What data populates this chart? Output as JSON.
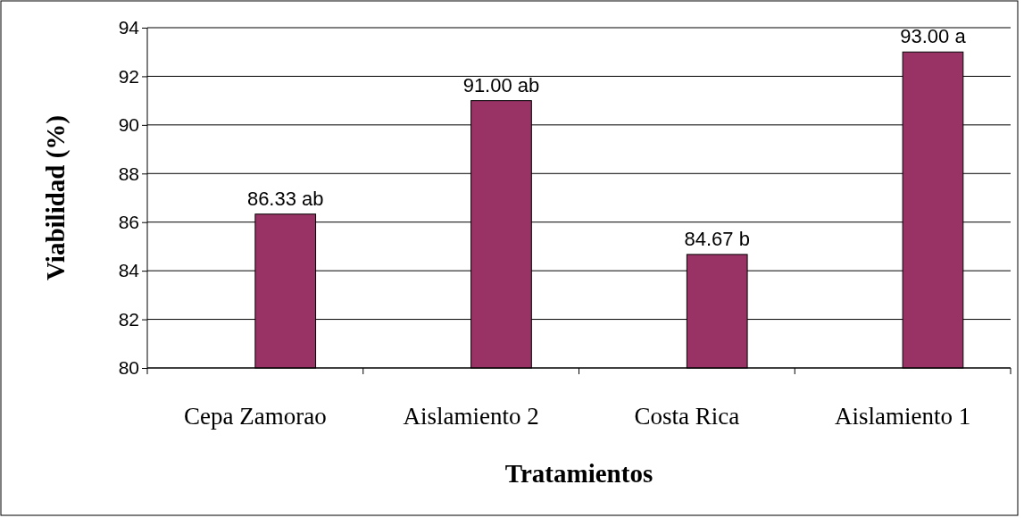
{
  "chart_data": {
    "type": "bar",
    "xlabel": "Tratamientos",
    "ylabel": "Viabilidad (%)",
    "categories": [
      "Cepa Zamorao",
      "Aislamiento 2",
      "Costa Rica",
      "Aislamiento 1"
    ],
    "values": [
      86.33,
      91.0,
      84.67,
      93.0
    ],
    "value_labels": [
      "86.33 ab",
      "91.00 ab",
      "84.67 b",
      "93.00 a"
    ],
    "color": "#993366",
    "ylim": [
      80,
      94
    ],
    "yticks": [
      80,
      82,
      84,
      86,
      88,
      90,
      92,
      94
    ],
    "grid": "y"
  }
}
